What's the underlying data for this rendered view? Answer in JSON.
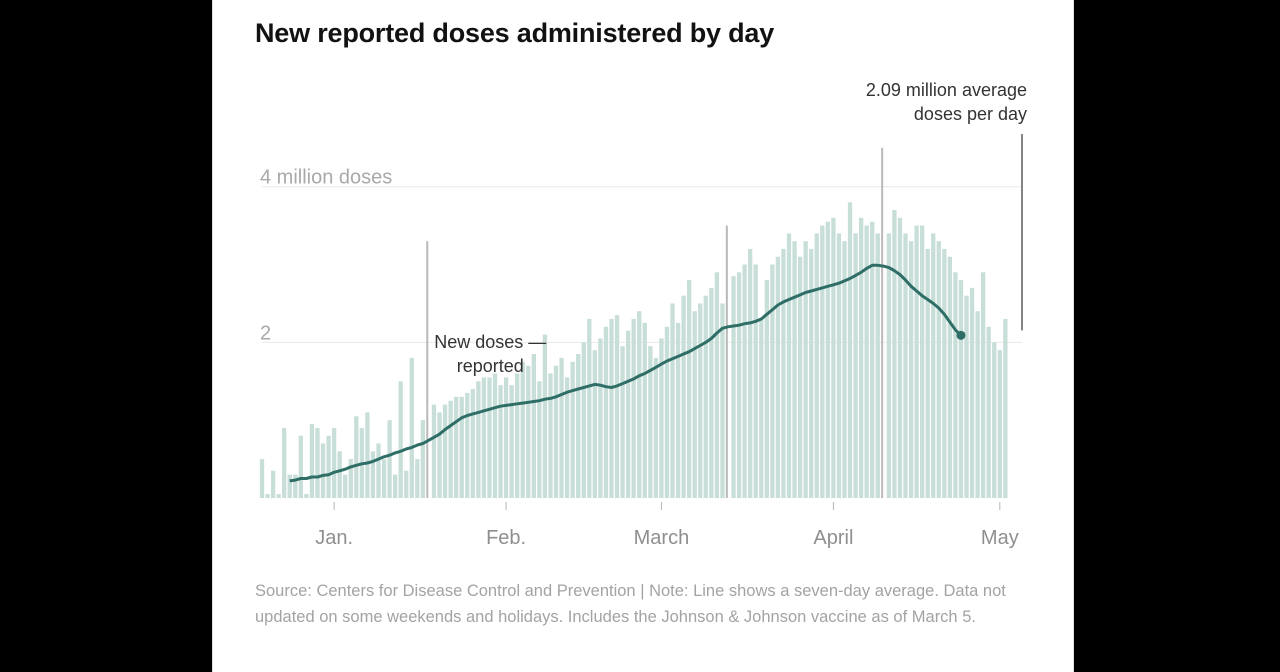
{
  "title": "New reported doses administered by day",
  "source_note": "Source: Centers for Disease Control and Prevention | Note: Line shows a seven-day average. Data not updated on some weekends and holidays. Includes the Johnson & Johnson vaccine as of March 5.",
  "colors": {
    "bar": "#c8ded9",
    "spike": "#b9b9b9",
    "line": "#2f6e66",
    "grid": "#e9e9e9",
    "ylabel": "#a9a9a9",
    "xlabel": "#8f8f8f"
  },
  "chart_data": {
    "type": "bar",
    "title": "New reported doses administered by day",
    "unit": "million doses",
    "ylim": [
      0,
      4.6
    ],
    "y_ticks": [
      {
        "value": 2,
        "label": "2"
      },
      {
        "value": 4,
        "label": "4 million doses"
      }
    ],
    "x_ticks": [
      {
        "day": 13,
        "label": "Jan."
      },
      {
        "day": 44,
        "label": "Feb."
      },
      {
        "day": 72,
        "label": "March"
      },
      {
        "day": 103,
        "label": "April"
      },
      {
        "day": 133,
        "label": "May"
      }
    ],
    "x_range_days": [
      0,
      137
    ],
    "series": [
      {
        "name": "New doses reported",
        "type": "bar",
        "start_day": 0,
        "values": [
          0.5,
          0.05,
          0.35,
          0.05,
          0.9,
          0.3,
          0.3,
          0.8,
          0.05,
          0.95,
          0.9,
          0.7,
          0.8,
          0.9,
          0.6,
          0.3,
          0.5,
          1.05,
          0.9,
          1.1,
          0.6,
          0.7,
          0.5,
          1.0,
          0.3,
          1.5,
          0.35,
          1.8,
          0.5,
          1.0,
          3.3,
          1.2,
          1.1,
          1.2,
          1.25,
          1.3,
          1.3,
          1.35,
          1.4,
          1.5,
          1.55,
          1.55,
          1.6,
          1.45,
          1.55,
          1.45,
          1.6,
          1.75,
          1.7,
          1.85,
          1.5,
          2.1,
          1.6,
          1.7,
          1.8,
          1.55,
          1.75,
          1.85,
          2.0,
          2.3,
          1.9,
          2.05,
          2.2,
          2.3,
          2.35,
          1.95,
          2.15,
          2.3,
          2.4,
          2.25,
          1.95,
          1.8,
          2.05,
          2.2,
          2.5,
          2.25,
          2.6,
          2.8,
          2.4,
          2.5,
          2.6,
          2.7,
          2.9,
          2.5,
          3.5,
          2.85,
          2.9,
          3.0,
          3.2,
          3.0,
          2.3,
          2.8,
          3.0,
          3.1,
          3.2,
          3.4,
          3.3,
          3.1,
          3.3,
          3.2,
          3.4,
          3.5,
          3.55,
          3.6,
          3.4,
          3.3,
          3.8,
          3.4,
          3.6,
          3.5,
          3.55,
          3.4,
          4.5,
          3.4,
          3.7,
          3.6,
          3.4,
          3.3,
          3.5,
          3.5,
          3.2,
          3.4,
          3.3,
          3.2,
          3.1,
          2.9,
          2.8,
          2.6,
          2.7,
          2.4,
          2.9,
          2.2,
          2.0,
          1.9,
          2.3
        ]
      },
      {
        "name": "Seven-day average",
        "type": "line",
        "start_day": 5,
        "values": [
          0.22,
          0.23,
          0.25,
          0.25,
          0.27,
          0.27,
          0.29,
          0.3,
          0.33,
          0.35,
          0.37,
          0.4,
          0.42,
          0.44,
          0.45,
          0.47,
          0.5,
          0.53,
          0.55,
          0.58,
          0.6,
          0.63,
          0.65,
          0.68,
          0.7,
          0.74,
          0.78,
          0.82,
          0.88,
          0.93,
          0.98,
          1.03,
          1.06,
          1.08,
          1.1,
          1.12,
          1.14,
          1.16,
          1.18,
          1.19,
          1.2,
          1.21,
          1.22,
          1.23,
          1.24,
          1.25,
          1.27,
          1.28,
          1.3,
          1.33,
          1.36,
          1.38,
          1.4,
          1.42,
          1.44,
          1.46,
          1.45,
          1.43,
          1.42,
          1.44,
          1.47,
          1.5,
          1.53,
          1.57,
          1.6,
          1.64,
          1.68,
          1.72,
          1.76,
          1.79,
          1.82,
          1.85,
          1.88,
          1.92,
          1.96,
          2.0,
          2.05,
          2.12,
          2.18,
          2.2,
          2.21,
          2.22,
          2.24,
          2.25,
          2.27,
          2.3,
          2.36,
          2.42,
          2.48,
          2.52,
          2.55,
          2.58,
          2.61,
          2.64,
          2.66,
          2.68,
          2.7,
          2.72,
          2.74,
          2.76,
          2.79,
          2.82,
          2.86,
          2.9,
          2.95,
          2.99,
          2.99,
          2.98,
          2.96,
          2.92,
          2.87,
          2.8,
          2.72,
          2.66,
          2.6,
          2.55,
          2.5,
          2.44,
          2.36,
          2.26,
          2.16,
          2.09
        ]
      }
    ],
    "annotations": [
      {
        "name": "peak-note",
        "lines": [
          "2.09 million average",
          "doses per day"
        ],
        "day": 137
      },
      {
        "name": "series-note",
        "lines": [
          "New doses —",
          "reported"
        ],
        "day": 37
      }
    ]
  }
}
